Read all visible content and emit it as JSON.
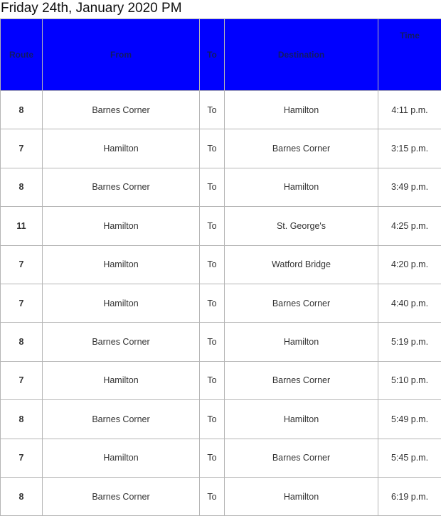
{
  "title": "Friday 24th, January 2020 PM",
  "colors": {
    "header_bg": "#0000ff"
  },
  "columns": [
    "Route",
    "From",
    "To",
    "Destination",
    "Time"
  ],
  "rows": [
    [
      "8",
      "Barnes Corner",
      "To",
      "Hamilton",
      "4:11 p.m."
    ],
    [
      "7",
      "Hamilton",
      "To",
      "Barnes Corner",
      "3:15 p.m."
    ],
    [
      "8",
      "Barnes Corner",
      "To",
      "Hamilton",
      "3:49 p.m."
    ],
    [
      "11",
      "Hamilton",
      "To",
      "St. George's",
      "4:25 p.m."
    ],
    [
      "7",
      "Hamilton",
      "To",
      "Watford Bridge",
      "4:20 p.m."
    ],
    [
      "7",
      "Hamilton",
      "To",
      "Barnes Corner",
      "4:40 p.m."
    ],
    [
      "8",
      "Barnes Corner",
      "To",
      "Hamilton",
      "5:19 p.m."
    ],
    [
      "7",
      "Hamilton",
      "To",
      "Barnes Corner",
      "5:10 p.m."
    ],
    [
      "8",
      "Barnes Corner",
      "To",
      "Hamilton",
      "5:49 p.m."
    ],
    [
      "7",
      "Hamilton",
      "To",
      "Barnes Corner",
      "5:45 p.m."
    ],
    [
      "8",
      "Barnes Corner",
      "To",
      "Hamilton",
      "6:19 p.m."
    ]
  ]
}
